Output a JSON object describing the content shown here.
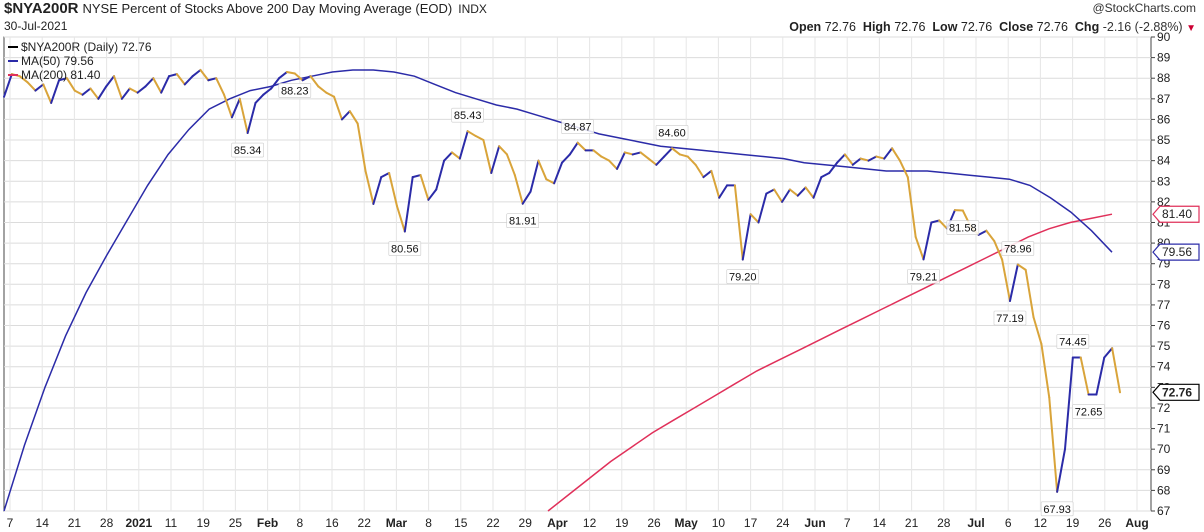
{
  "header": {
    "symbol": "$NYA200R",
    "description": "NYSE Percent of Stocks Above 200 Day Moving Average (EOD)",
    "exchange": "INDX",
    "credit": "@StockCharts.com",
    "date": "30-Jul-2021",
    "ohlc": {
      "open_label": "Open",
      "open": "72.76",
      "high_label": "High",
      "high": "72.76",
      "low_label": "Low",
      "low": "72.76",
      "close_label": "Close",
      "close": "72.76",
      "chg_label": "Chg",
      "chg": "-2.16 (-2.88%)"
    }
  },
  "chart_data": {
    "type": "line",
    "title": "NYSE Percent of Stocks Above 200 Day Moving Average (EOD)",
    "ylim": [
      67,
      90
    ],
    "y_ticks": [
      67,
      68,
      69,
      70,
      71,
      72,
      73,
      74,
      75,
      76,
      77,
      78,
      79,
      80,
      81,
      82,
      83,
      84,
      85,
      86,
      87,
      88,
      89,
      90
    ],
    "x_labels": [
      "7",
      "14",
      "21",
      "28",
      "2021",
      "11",
      "19",
      "25",
      "Feb",
      "8",
      "16",
      "22",
      "Mar",
      "8",
      "15",
      "22",
      "29",
      "Apr",
      "12",
      "19",
      "26",
      "May",
      "10",
      "17",
      "24",
      "Jun",
      "7",
      "14",
      "21",
      "28",
      "Jul",
      "6",
      "12",
      "19",
      "26",
      "Aug"
    ],
    "x_label_bold": [
      "2021",
      "Feb",
      "Mar",
      "Apr",
      "May",
      "Jun",
      "Jul",
      "Aug"
    ],
    "legend": [
      {
        "label": "$NYA200R (Daily) 72.76",
        "color": "#000000"
      },
      {
        "label": "MA(50) 79.56",
        "color": "#2b2ba8"
      },
      {
        "label": "MA(200) 81.40",
        "color": "#e0305a"
      }
    ],
    "series": [
      {
        "name": "$NYA200R",
        "color_up": "#2b2ba8",
        "color_down": "#d9a43a",
        "values": [
          87.1,
          88.2,
          88.1,
          87.8,
          87.4,
          87.7,
          86.8,
          87.9,
          88.0,
          87.4,
          87.2,
          87.5,
          87.0,
          87.6,
          88.1,
          87.0,
          87.5,
          87.3,
          87.6,
          88.0,
          87.3,
          88.1,
          88.2,
          87.7,
          88.1,
          88.4,
          87.9,
          88.0,
          87.2,
          86.1,
          87.0,
          85.34,
          86.8,
          87.2,
          87.5,
          88.0,
          88.3,
          88.23,
          87.9,
          88.1,
          87.6,
          87.3,
          87.1,
          86.0,
          86.4,
          85.8,
          83.5,
          81.9,
          83.2,
          83.4,
          81.8,
          80.56,
          83.2,
          83.3,
          82.1,
          82.6,
          84.0,
          84.4,
          84.1,
          85.43,
          85.2,
          85.0,
          83.4,
          84.7,
          84.3,
          83.3,
          81.91,
          82.5,
          84.0,
          83.1,
          82.9,
          83.9,
          84.3,
          84.87,
          84.5,
          84.5,
          84.2,
          84.0,
          83.6,
          84.4,
          84.3,
          84.4,
          84.1,
          83.8,
          84.2,
          84.6,
          84.3,
          84.2,
          83.8,
          83.2,
          83.5,
          82.2,
          82.8,
          82.8,
          79.2,
          81.4,
          81.0,
          82.4,
          82.6,
          82.0,
          82.6,
          82.3,
          82.7,
          82.2,
          83.2,
          83.4,
          83.9,
          84.3,
          83.8,
          84.1,
          84.0,
          84.2,
          84.1,
          84.6,
          84.0,
          83.2,
          80.3,
          79.21,
          81.0,
          81.1,
          80.7,
          81.6,
          81.58,
          80.8,
          80.4,
          80.6,
          80.1,
          79.2,
          77.19,
          78.96,
          78.7,
          76.4,
          75.1,
          72.5,
          67.93,
          70.0,
          74.45,
          74.45,
          72.65,
          72.65,
          74.45,
          74.9,
          72.76
        ]
      },
      {
        "name": "MA(50)",
        "color": "#2b2ba8",
        "values": [
          67.0,
          70.2,
          73.0,
          75.5,
          77.6,
          79.4,
          81.1,
          82.8,
          84.3,
          85.5,
          86.5,
          87.0,
          87.4,
          87.6,
          87.9,
          88.1,
          88.3,
          88.4,
          88.4,
          88.3,
          88.1,
          87.7,
          87.3,
          87.0,
          86.7,
          86.5,
          86.2,
          85.9,
          85.6,
          85.3,
          85.1,
          84.9,
          84.7,
          84.6,
          84.5,
          84.4,
          84.3,
          84.2,
          84.1,
          83.9,
          83.8,
          83.7,
          83.6,
          83.5,
          83.5,
          83.5,
          83.4,
          83.3,
          83.2,
          83.1,
          82.8,
          82.2,
          81.5,
          80.6,
          79.56
        ]
      },
      {
        "name": "MA(200)",
        "color": "#e0305a",
        "values": [
          67.0,
          67.8,
          68.6,
          69.4,
          70.1,
          70.8,
          71.4,
          72.0,
          72.6,
          73.2,
          73.8,
          74.3,
          74.8,
          75.3,
          75.8,
          76.3,
          76.8,
          77.3,
          77.8,
          78.3,
          78.8,
          79.3,
          79.8,
          80.3,
          80.7,
          81.0,
          81.2,
          81.4
        ]
      }
    ],
    "annotations": [
      "85.34",
      "88.23",
      "80.56",
      "85.43",
      "81.91",
      "84.87",
      "79.20",
      "84.60",
      "81.58",
      "79.21",
      "78.96",
      "77.19",
      "74.45",
      "72.65",
      "67.93"
    ],
    "right_markers": [
      {
        "value": "81.40",
        "color": "#e0305a"
      },
      {
        "value": "79.56",
        "color": "#2b2ba8"
      },
      {
        "value": "72.76",
        "color": "#000000"
      }
    ]
  }
}
